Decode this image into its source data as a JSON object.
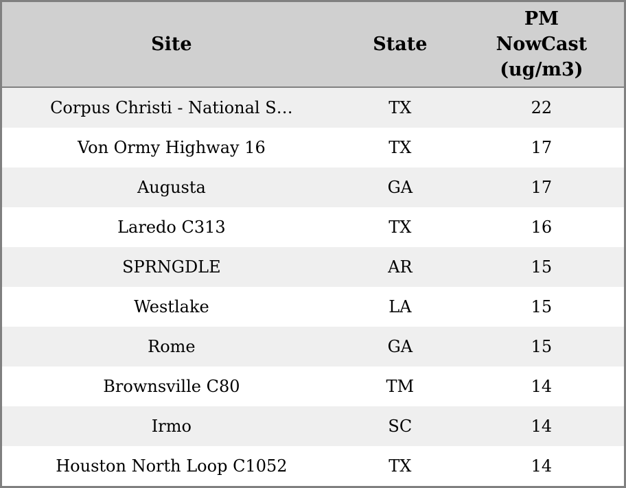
{
  "chart_data": {
    "type": "table",
    "columns": [
      {
        "label": "Site",
        "display": "Site"
      },
      {
        "label": "State",
        "display": "State"
      },
      {
        "label": "PM NowCast (ug/m3)",
        "display": "PM\nNowCast\n(ug/m3)"
      }
    ],
    "rows": [
      {
        "site": "Corpus Christi - National S…",
        "state": "TX",
        "pm_nowcast": "22"
      },
      {
        "site": "Von Ormy Highway 16",
        "state": "TX",
        "pm_nowcast": "17"
      },
      {
        "site": "Augusta",
        "state": "GA",
        "pm_nowcast": "17"
      },
      {
        "site": "Laredo C313",
        "state": "TX",
        "pm_nowcast": "16"
      },
      {
        "site": "SPRNGDLE",
        "state": "AR",
        "pm_nowcast": "15"
      },
      {
        "site": "Westlake",
        "state": "LA",
        "pm_nowcast": "15"
      },
      {
        "site": "Rome",
        "state": "GA",
        "pm_nowcast": "15"
      },
      {
        "site": "Brownsville C80",
        "state": "TM",
        "pm_nowcast": "14"
      },
      {
        "site": "Irmo",
        "state": "SC",
        "pm_nowcast": "14"
      },
      {
        "site": "Houston North Loop C1052",
        "state": "TX",
        "pm_nowcast": "14"
      }
    ]
  },
  "colors": {
    "header_bg": "#d0d0d0",
    "row_bg": "#ffffff",
    "row_alt_bg": "#efefef",
    "border": "#808080",
    "text": "#000000"
  }
}
